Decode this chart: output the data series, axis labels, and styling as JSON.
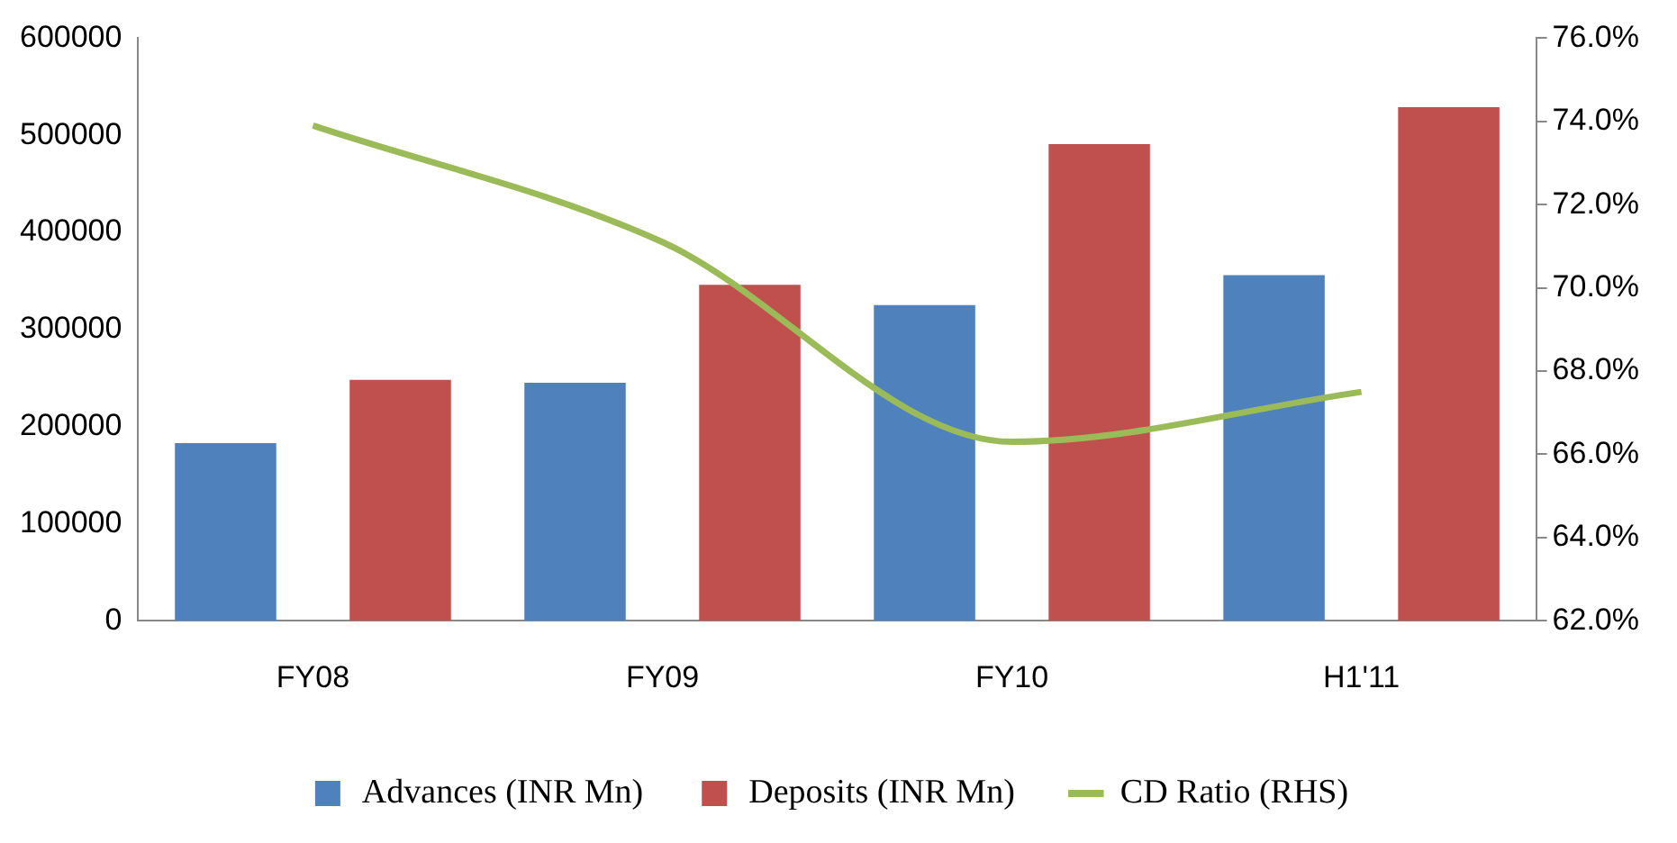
{
  "chart_data": {
    "type": "bar",
    "categories": [
      "FY08",
      "FY09",
      "FY10",
      "H1'11"
    ],
    "series": [
      {
        "name": "Advances (INR Mn)",
        "color": "#4f81bd",
        "values": [
          183000,
          245000,
          325000,
          356000
        ]
      },
      {
        "name": "Deposits (INR Mn)",
        "color": "#c0504d",
        "values": [
          248000,
          346000,
          491000,
          529000
        ]
      },
      {
        "name": "CD Ratio (RHS)",
        "type": "line",
        "axis": "y2",
        "color": "#9bbb59",
        "values": [
          73.9,
          71.1,
          66.3,
          67.5
        ]
      }
    ],
    "ylim": [
      0,
      600000
    ],
    "yticks": [
      0,
      100000,
      200000,
      300000,
      400000,
      500000,
      600000
    ],
    "y2lim": [
      62,
      76
    ],
    "y2ticks": [
      {
        "value": 62,
        "label": "62.0%"
      },
      {
        "value": 64,
        "label": "64.0%"
      },
      {
        "value": 66,
        "label": "66.0%"
      },
      {
        "value": 68,
        "label": "68.0%"
      },
      {
        "value": 70,
        "label": "70.0%"
      },
      {
        "value": 72,
        "label": "72.0%"
      },
      {
        "value": 74,
        "label": "74.0%"
      },
      {
        "value": 76,
        "label": "76.0%"
      }
    ],
    "legend": "bottom",
    "marker": "none",
    "grid": false
  }
}
